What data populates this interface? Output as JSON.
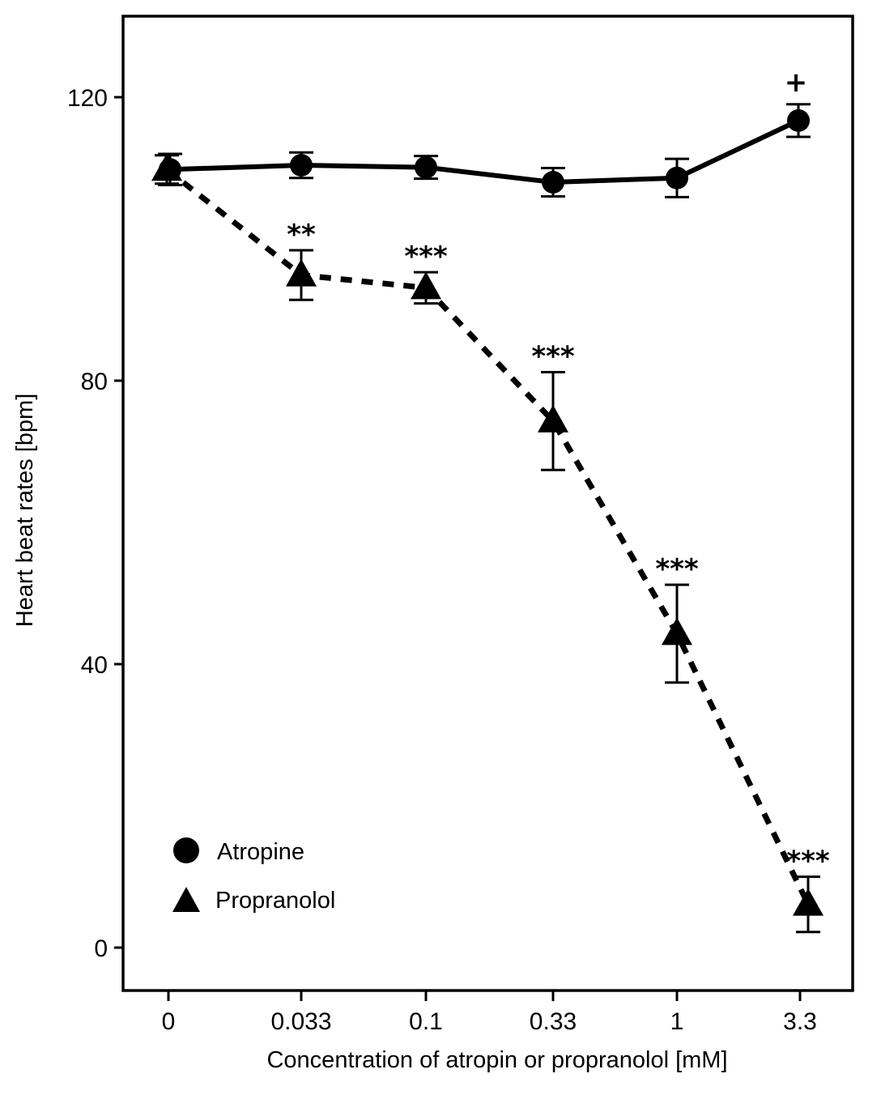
{
  "chart_data": {
    "type": "line",
    "title": "",
    "xlabel": "Concentration of atropin or propranolol [mM]",
    "ylabel": "Heart beat rates [bpm]",
    "categories": [
      "0",
      "0.033",
      "0.1",
      "0.33",
      "1",
      "3.3"
    ],
    "x_scale": "categorical",
    "ylim": [
      -6,
      131
    ],
    "yticks": [
      0,
      40,
      80,
      120
    ],
    "ytick_labels": [
      "0",
      "40",
      "80",
      "120"
    ],
    "grid": false,
    "legend": {
      "position": "bottom-left"
    },
    "series": [
      {
        "name": "Atropine",
        "marker": "circle",
        "line_style": "solid",
        "color": "#000000",
        "values": [
          109.8,
          110.4,
          110.1,
          108.0,
          108.6,
          116.7
        ],
        "errors": [
          2.2,
          1.8,
          1.6,
          2.0,
          2.7,
          2.3
        ],
        "annotations": [
          "",
          "",
          "",
          "",
          "",
          "+"
        ]
      },
      {
        "name": "Propranolol",
        "marker": "triangle",
        "line_style": "dashed",
        "color": "#000000",
        "values": [
          109.8,
          94.9,
          93.1,
          74.3,
          44.3,
          6.1
        ],
        "errors": [
          2.0,
          3.5,
          2.2,
          6.9,
          6.9,
          3.9
        ],
        "annotations": [
          "",
          "**",
          "***",
          "***",
          "***",
          "***"
        ]
      }
    ]
  }
}
